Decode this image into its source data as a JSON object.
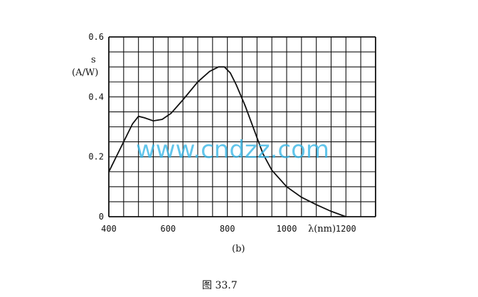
{
  "chart_data": {
    "type": "line",
    "xlabel": "λ(nm)",
    "ylabel_symbol": "s",
    "ylabel_unit": "(A/W)",
    "xlim": [
      400,
      1300
    ],
    "ylim": [
      0,
      0.6
    ],
    "x_ticks": [
      {
        "value": 400,
        "label": "400"
      },
      {
        "value": 600,
        "label": "600"
      },
      {
        "value": 800,
        "label": "800"
      },
      {
        "value": 1000,
        "label": "1000"
      },
      {
        "value": 1200,
        "label": "1200"
      }
    ],
    "y_ticks": [
      {
        "value": 0,
        "label": "0"
      },
      {
        "value": 0.2,
        "label": "0.2"
      },
      {
        "value": 0.4,
        "label": "0.4"
      },
      {
        "value": 0.6,
        "label": "0.6"
      }
    ],
    "grid": true,
    "grid_step_x": 50,
    "grid_step_y": 0.05,
    "series": [
      {
        "color": "#111111",
        "x": [
          400,
          430,
          460,
          480,
          500,
          520,
          550,
          580,
          610,
          650,
          700,
          740,
          770,
          790,
          810,
          830,
          860,
          890,
          920,
          950,
          1000,
          1050,
          1100,
          1150,
          1200
        ],
        "y": [
          0.15,
          0.21,
          0.27,
          0.31,
          0.335,
          0.33,
          0.32,
          0.325,
          0.345,
          0.39,
          0.45,
          0.485,
          0.5,
          0.5,
          0.48,
          0.44,
          0.37,
          0.29,
          0.21,
          0.155,
          0.1,
          0.065,
          0.04,
          0.018,
          0.0
        ]
      }
    ]
  },
  "panel_label": "(b)",
  "figure_caption": "图 33.7",
  "watermark": "www.cndzz.com"
}
